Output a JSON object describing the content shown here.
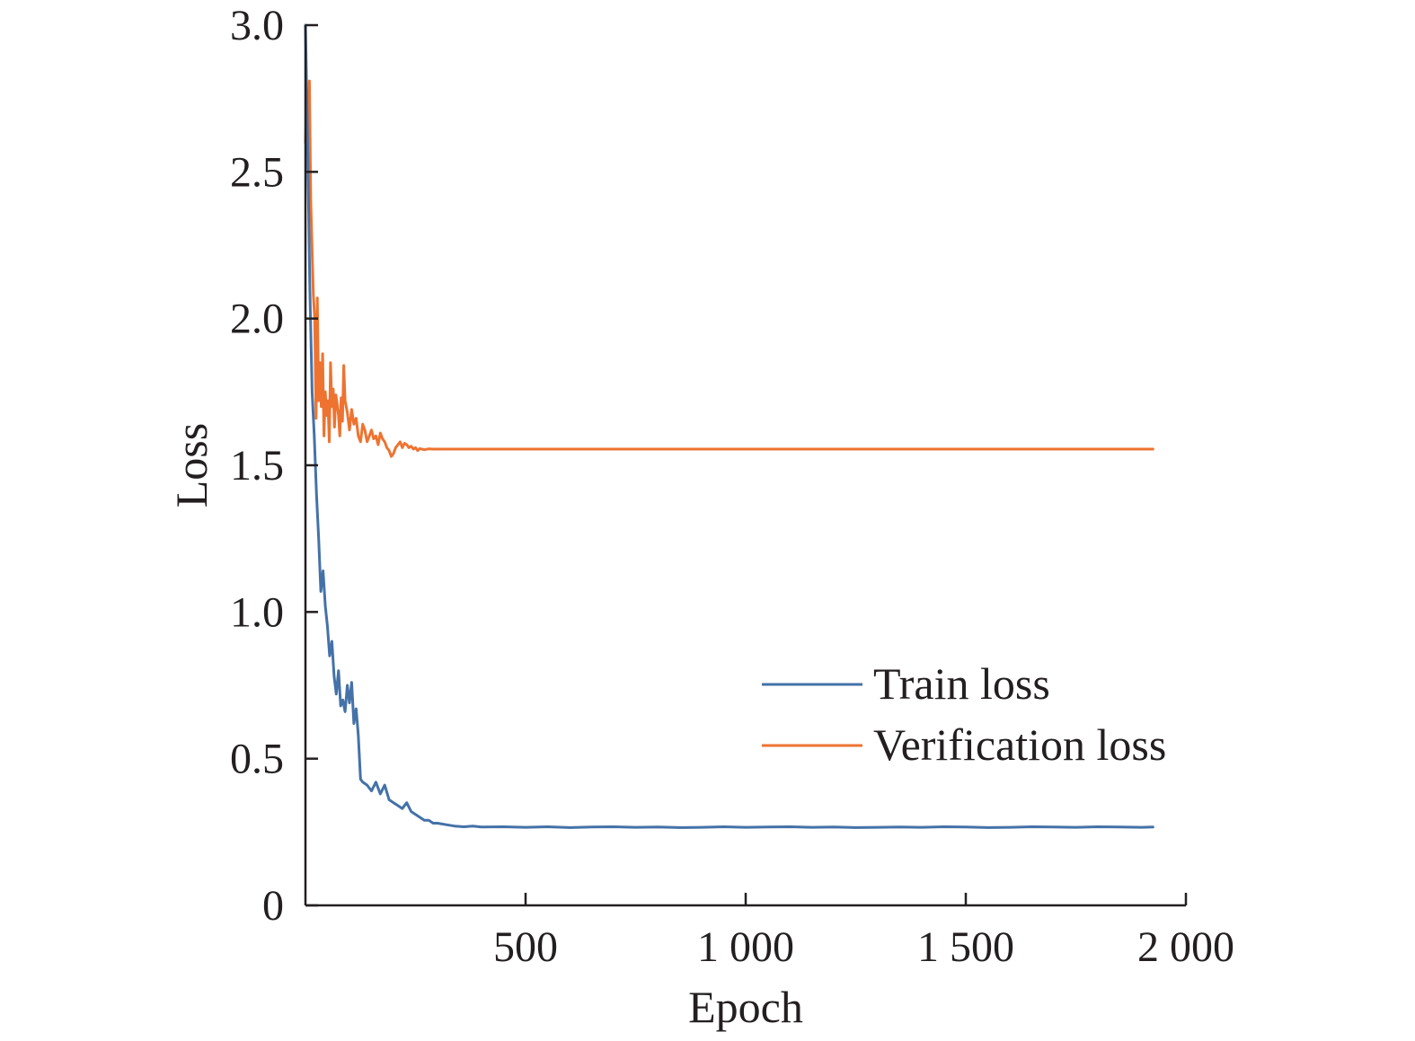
{
  "chart_data": {
    "type": "line",
    "title": "",
    "xlabel": "Epoch",
    "ylabel": "Loss",
    "xlim": [
      0,
      2000
    ],
    "ylim": [
      0,
      3.0
    ],
    "xticks": [
      500,
      1000,
      1500,
      2000
    ],
    "xtick_labels": [
      "500",
      "1 000",
      "1 500",
      "2 000"
    ],
    "yticks": [
      0,
      0.5,
      1.0,
      1.5,
      2.0,
      2.5,
      3.0
    ],
    "ytick_labels": [
      "0",
      "0.5",
      "1.0",
      "1.5",
      "2.0",
      "2.5",
      "3.0"
    ],
    "grid": false,
    "legend_position": "right",
    "series": [
      {
        "name": "Train loss",
        "color": "#4472a8",
        "x": [
          0,
          5,
          10,
          15,
          20,
          25,
          30,
          35,
          40,
          45,
          50,
          55,
          60,
          65,
          70,
          75,
          80,
          85,
          90,
          95,
          100,
          105,
          110,
          115,
          120,
          125,
          130,
          140,
          150,
          160,
          170,
          180,
          190,
          200,
          210,
          220,
          230,
          240,
          250,
          260,
          270,
          280,
          290,
          300,
          320,
          340,
          360,
          380,
          400,
          450,
          500,
          550,
          600,
          650,
          700,
          750,
          800,
          850,
          900,
          950,
          1000,
          1050,
          1100,
          1150,
          1200,
          1250,
          1300,
          1350,
          1400,
          1450,
          1500,
          1550,
          1600,
          1650,
          1700,
          1750,
          1800,
          1850,
          1900,
          1925
        ],
        "y": [
          3.0,
          2.6,
          2.1,
          1.75,
          1.6,
          1.4,
          1.25,
          1.07,
          1.14,
          1.02,
          0.95,
          0.85,
          0.9,
          0.78,
          0.72,
          0.8,
          0.68,
          0.7,
          0.66,
          0.75,
          0.69,
          0.76,
          0.62,
          0.67,
          0.58,
          0.43,
          0.42,
          0.41,
          0.39,
          0.42,
          0.38,
          0.41,
          0.36,
          0.35,
          0.34,
          0.33,
          0.35,
          0.32,
          0.31,
          0.3,
          0.29,
          0.29,
          0.28,
          0.28,
          0.275,
          0.27,
          0.268,
          0.27,
          0.267,
          0.268,
          0.266,
          0.268,
          0.265,
          0.267,
          0.268,
          0.266,
          0.267,
          0.265,
          0.266,
          0.268,
          0.266,
          0.267,
          0.268,
          0.266,
          0.267,
          0.265,
          0.266,
          0.267,
          0.266,
          0.268,
          0.267,
          0.265,
          0.266,
          0.268,
          0.267,
          0.266,
          0.268,
          0.267,
          0.266,
          0.267
        ]
      },
      {
        "name": "Verification loss",
        "color": "#ee7330",
        "x": [
          0,
          3,
          6,
          9,
          12,
          15,
          18,
          21,
          24,
          27,
          30,
          33,
          36,
          39,
          42,
          45,
          48,
          51,
          54,
          57,
          60,
          63,
          66,
          69,
          72,
          75,
          78,
          81,
          84,
          87,
          90,
          95,
          100,
          105,
          110,
          115,
          120,
          125,
          130,
          135,
          140,
          145,
          150,
          155,
          160,
          165,
          170,
          175,
          180,
          185,
          190,
          195,
          200,
          205,
          210,
          215,
          220,
          225,
          230,
          235,
          240,
          245,
          250,
          255,
          260,
          270,
          280,
          290,
          300,
          310,
          320,
          340,
          360,
          400,
          500,
          600,
          800,
          1000,
          1200,
          1400,
          1600,
          1800,
          1925
        ],
        "y": [
          2.6,
          2.78,
          2.5,
          2.81,
          2.4,
          2.23,
          2.08,
          2.0,
          1.66,
          2.07,
          1.72,
          1.85,
          1.7,
          1.88,
          1.6,
          1.75,
          1.67,
          1.72,
          1.58,
          1.85,
          1.7,
          1.76,
          1.63,
          1.74,
          1.71,
          1.67,
          1.6,
          1.73,
          1.65,
          1.84,
          1.72,
          1.68,
          1.62,
          1.69,
          1.64,
          1.66,
          1.6,
          1.58,
          1.64,
          1.62,
          1.58,
          1.6,
          1.62,
          1.59,
          1.6,
          1.57,
          1.61,
          1.59,
          1.58,
          1.56,
          1.55,
          1.53,
          1.54,
          1.56,
          1.57,
          1.58,
          1.56,
          1.575,
          1.57,
          1.56,
          1.565,
          1.555,
          1.56,
          1.55,
          1.557,
          1.553,
          1.556,
          1.555,
          1.555,
          1.555,
          1.555,
          1.555,
          1.555,
          1.555,
          1.555,
          1.555,
          1.555,
          1.555,
          1.555,
          1.555,
          1.555,
          1.555,
          1.555
        ]
      }
    ]
  }
}
